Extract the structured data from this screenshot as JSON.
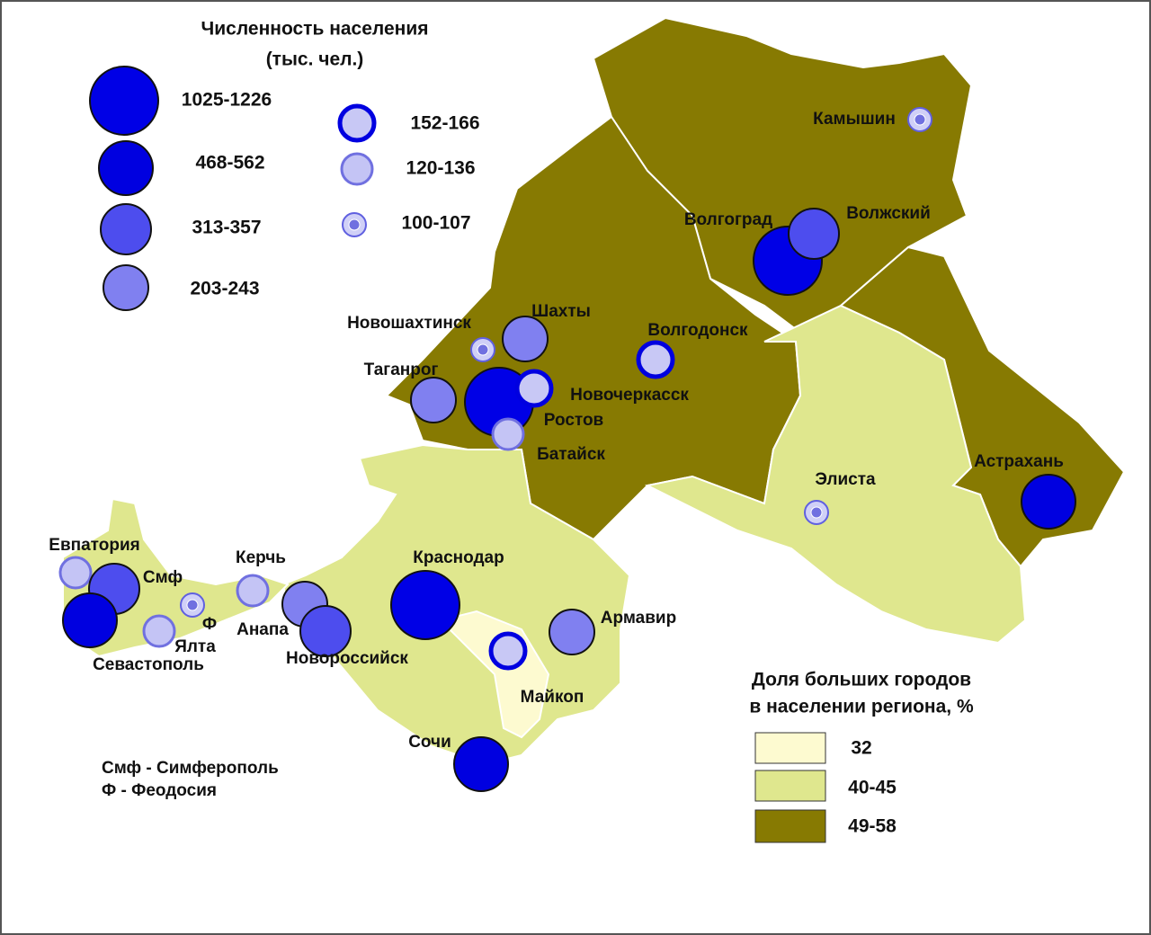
{
  "legend_population": {
    "title": "Численность населения",
    "subtitle": "(тыс. чел.)",
    "classes": [
      "1025-1226",
      "468-562",
      "313-357",
      "203-243",
      "152-166",
      "120-136",
      "100-107"
    ]
  },
  "legend_share": {
    "title": "Доля больших городов",
    "subtitle": "в населении региона, %",
    "classes": [
      "32",
      "40-45",
      "49-58"
    ]
  },
  "cities": [
    "Камышин",
    "Волгоград",
    "Волжский",
    "Волгодонск",
    "Шахты",
    "Новошахтинск",
    "Таганрог",
    "Ростов",
    "Новочеркасск",
    "Батайск",
    "Элиста",
    "Астрахань",
    "Евпатория",
    "Смф",
    "Ф",
    "Севастополь",
    "Ялта",
    "Керчь",
    "Анапа",
    "Новороссийск",
    "Краснодар",
    "Армавир",
    "Майкоп",
    "Сочи"
  ],
  "notes": [
    "Смф - Симферополь",
    "Ф - Феодосия"
  ]
}
